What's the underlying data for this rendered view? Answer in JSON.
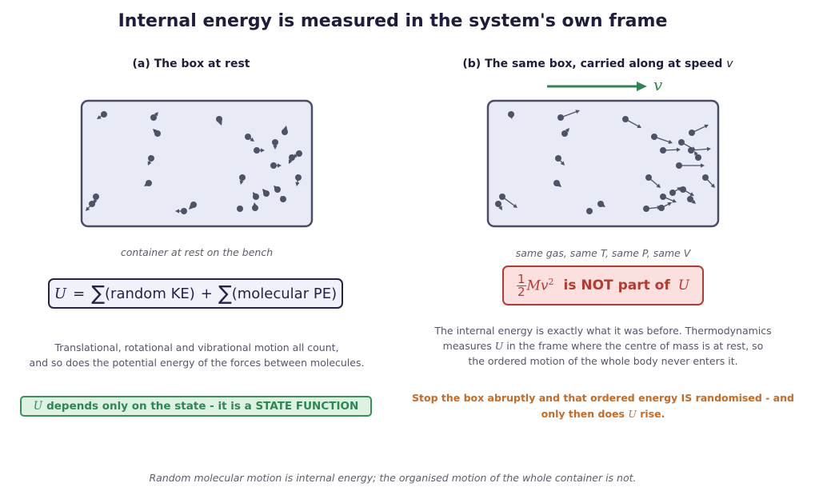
{
  "title": "Internal energy is measured in the system's own frame",
  "panel_a": {
    "title": "(a) The box at rest",
    "caption": "container at rest on the bench",
    "equation": {
      "lhs": "U",
      "eq": "=",
      "sum1": "∑",
      "term1": "(random KE)",
      "plus": "+",
      "sum2": "∑",
      "term2": "(molecular PE)"
    },
    "body_line1": "Translational, rotational and vibrational motion all count,",
    "body_line2": "and so does the potential energy of the forces between molecules.",
    "state_u": "U",
    "state_text": "depends only on the state - it is a STATE FUNCTION"
  },
  "panel_b": {
    "title_text": "(b) The same box, carried along at speed",
    "title_v": "v",
    "arrow_label": "v",
    "caption": "same gas, same T, same P, same V",
    "formula": {
      "num": "1",
      "den": "2",
      "mv": "Mv",
      "exp": "2",
      "text": "is NOT part of",
      "u": "U"
    },
    "body_line1": "The internal energy is exactly what it was before. Thermodynamics",
    "body_line2_a": "measures",
    "body_line2_u": "U",
    "body_line2_b": "in the frame where the centre of mass is at rest, so",
    "body_line3": "the ordered motion of the whole body never enters it.",
    "orange_line1": "Stop the box abruptly and that ordered energy IS randomised - and",
    "orange_line2_a": "only then does",
    "orange_line2_u": "U",
    "orange_line2_b": "rise."
  },
  "footer": "Random molecular motion is internal energy; the organised motion of the whole container is not.",
  "colors": {
    "box_fill": "#e8eaf6",
    "box_stroke": "#4a4d65",
    "molecule": "#4f5166",
    "velocity_arrow": "#2e8650",
    "state_green": "#2e8650",
    "warning_red": "#b53a30",
    "orange": "#c86a22",
    "navy": "#1f1d3d"
  }
}
